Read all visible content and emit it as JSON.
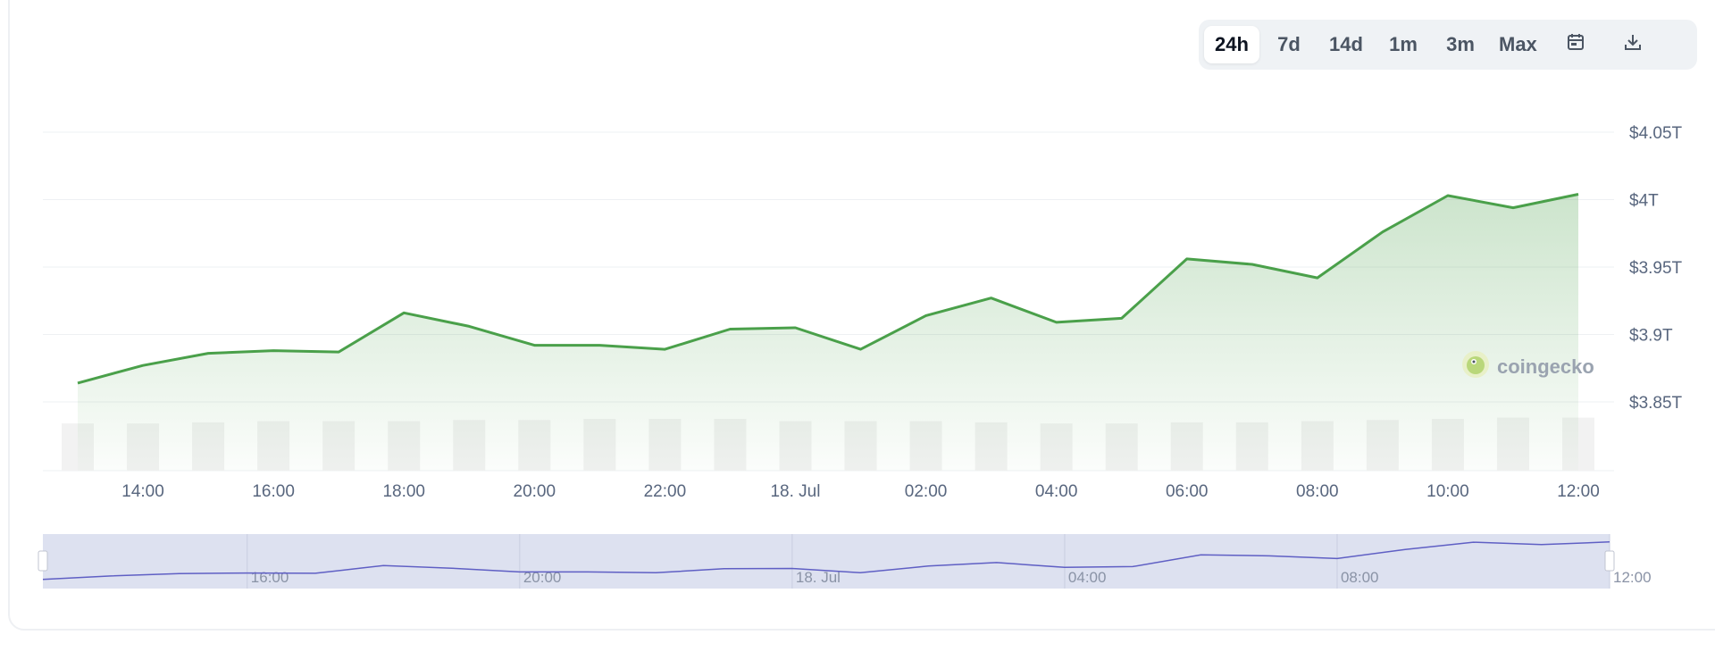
{
  "toolbar": {
    "ranges": [
      {
        "label": "24h",
        "active": true
      },
      {
        "label": "7d",
        "active": false
      },
      {
        "label": "14d",
        "active": false
      },
      {
        "label": "1m",
        "active": false
      },
      {
        "label": "3m",
        "active": false
      },
      {
        "label": "Max",
        "active": false
      }
    ],
    "calendar_icon": "calendar-icon",
    "download_icon": "download-icon"
  },
  "watermark": {
    "label": "coingecko",
    "logo_icon": "gecko-logo-icon"
  },
  "colors": {
    "line": "#4aa04a",
    "fill": "#4aa04a",
    "volume": "#f2f2f2",
    "navigator_bg": "#dde1f0",
    "navigator_line": "#5f5fc4"
  },
  "chart_data": {
    "type": "line",
    "title": "",
    "xlabel": "",
    "ylabel": "",
    "y_ticks": [
      "$4.05T",
      "$4T",
      "$3.95T",
      "$3.9T",
      "$3.85T"
    ],
    "y_tick_values": [
      4.05,
      4.0,
      3.95,
      3.9,
      3.85
    ],
    "ylim": [
      3.85,
      4.05
    ],
    "x_tick_labels": [
      "14:00",
      "16:00",
      "18:00",
      "20:00",
      "22:00",
      "18. Jul",
      "02:00",
      "04:00",
      "06:00",
      "08:00",
      "10:00",
      "12:00"
    ],
    "x": [
      "13:00",
      "14:00",
      "15:00",
      "16:00",
      "17:00",
      "18:00",
      "19:00",
      "20:00",
      "21:00",
      "22:00",
      "23:00",
      "18. Jul 00:00",
      "01:00",
      "02:00",
      "03:00",
      "04:00",
      "05:00",
      "06:00",
      "07:00",
      "08:00",
      "09:00",
      "10:00",
      "11:00",
      "12:00"
    ],
    "series": [
      {
        "values": [
          3.864,
          3.877,
          3.886,
          3.888,
          3.887,
          3.916,
          3.906,
          3.892,
          3.892,
          3.889,
          3.904,
          3.905,
          3.889,
          3.914,
          3.927,
          3.909,
          3.912,
          3.956,
          3.952,
          3.942,
          3.976,
          4.003,
          3.994,
          4.004
        ]
      }
    ],
    "volume_level": [
      0.8,
      0.8,
      0.82,
      0.84,
      0.84,
      0.84,
      0.86,
      0.86,
      0.88,
      0.88,
      0.88,
      0.84,
      0.84,
      0.84,
      0.82,
      0.8,
      0.8,
      0.82,
      0.82,
      0.84,
      0.86,
      0.88,
      0.9,
      0.9
    ],
    "navigator": {
      "tick_labels": [
        "16:00",
        "20:00",
        "18. Jul",
        "04:00",
        "08:00",
        "12:00"
      ]
    },
    "grid": true,
    "legend": "none"
  }
}
